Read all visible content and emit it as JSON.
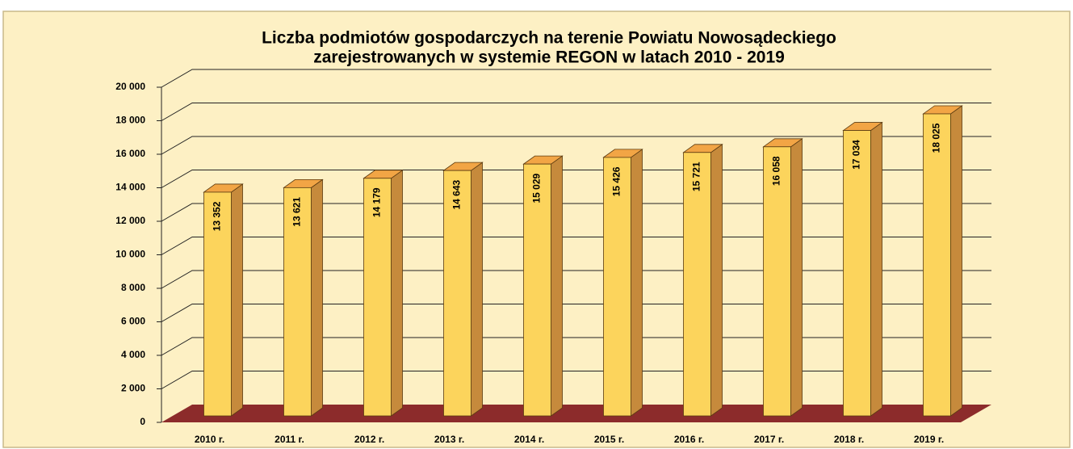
{
  "chart_data": {
    "type": "bar3d",
    "title": [
      "Liczba podmiotów gospodarczych na terenie Powiatu Nowosądeckiego",
      "zarejestrowanych w systemie REGON  w latach 2010 - 2019"
    ],
    "categories": [
      "2010 r.",
      "2011 r.",
      "2012 r.",
      "2013 r.",
      "2014 r.",
      "2015 r.",
      "2016 r.",
      "2017 r.",
      "2018 r.",
      "2019 r."
    ],
    "values": [
      13352,
      13621,
      14179,
      14643,
      15029,
      15426,
      15721,
      16058,
      17034,
      18025
    ],
    "value_labels": [
      "13 352",
      "13 621",
      "14 179",
      "14 643",
      "15 029",
      "15 426",
      "15 721",
      "16 058",
      "17 034",
      "18 025"
    ],
    "color": "#fcd45c",
    "ylim": [
      0,
      20000
    ],
    "yticks": [
      0,
      {
        "value": 2000,
        "label": "2 000"
      },
      {
        "value": 4000,
        "label": "4 000"
      },
      {
        "value": 6000,
        "label": "6 000"
      },
      {
        "value": 8000,
        "label": "8 000"
      },
      {
        "value": 10000,
        "label": "10 000"
      },
      {
        "value": 12000,
        "label": "12 000"
      },
      {
        "value": 14000,
        "label": "14 000"
      },
      {
        "value": 16000,
        "label": "16 000"
      },
      {
        "value": 18000,
        "label": "18 000"
      },
      {
        "value": 20000,
        "label": "20 000"
      }
    ],
    "grid": true
  }
}
